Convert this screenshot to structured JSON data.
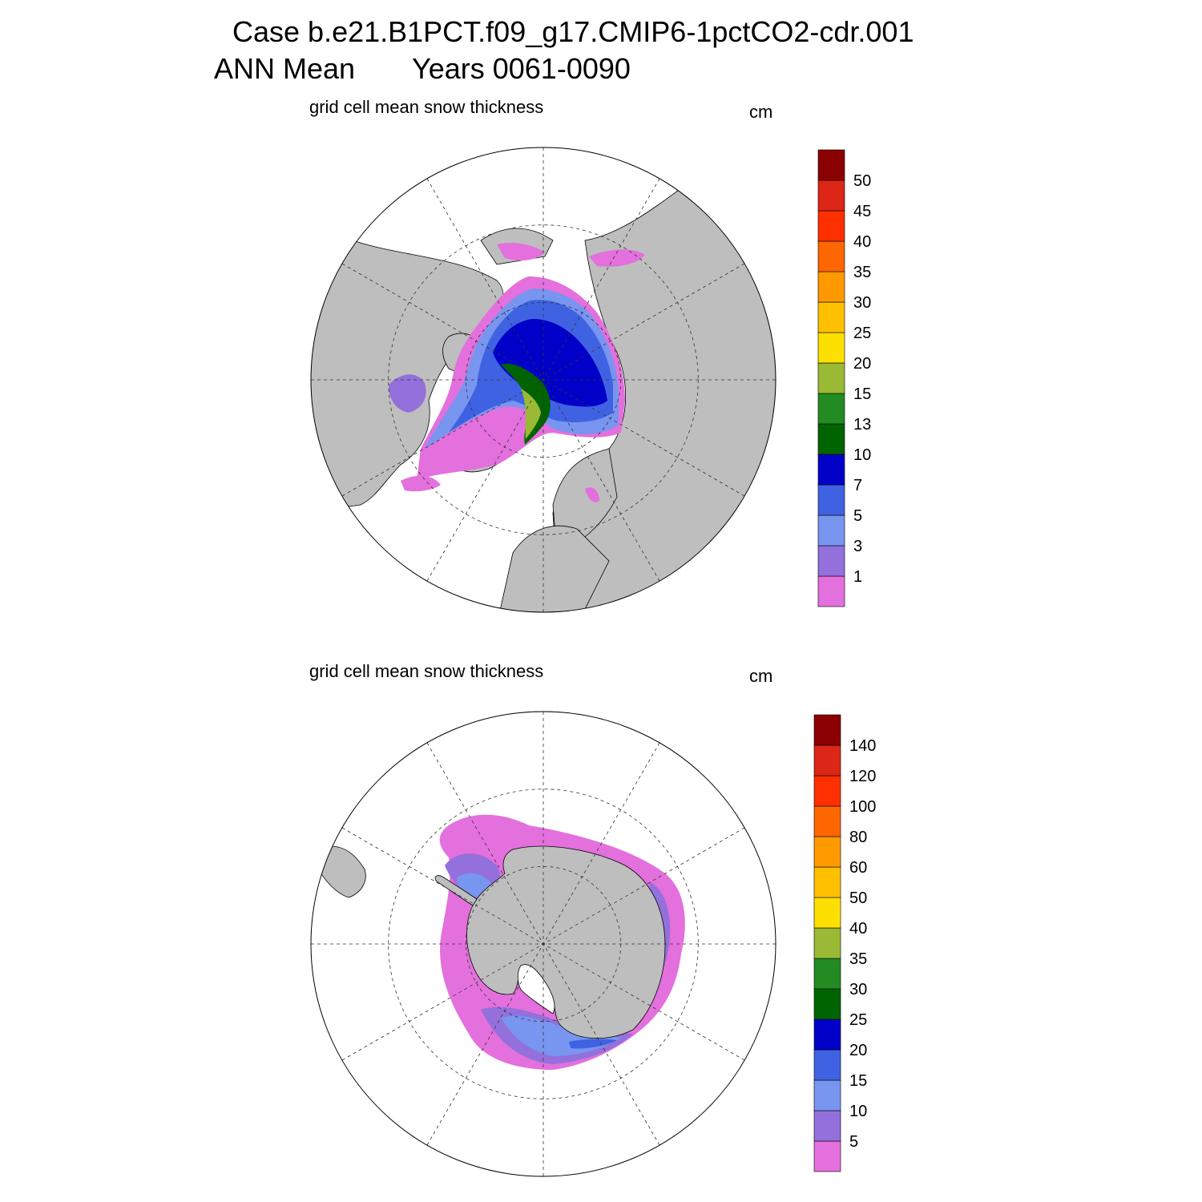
{
  "header": {
    "line1": "Case b.e21.B1PCT.f09_g17.CMIP6-1pctCO2-cdr.001",
    "line2_left": "ANN Mean",
    "line2_right": "Years 0061-0090"
  },
  "panels": [
    {
      "id": "north",
      "title": "grid cell mean snow thickness",
      "units": "cm",
      "colorbar": {
        "colors": [
          "#e370dc",
          "#9370dc",
          "#7895f0",
          "#3f62e3",
          "#0000c8",
          "#006400",
          "#228b22",
          "#9aba35",
          "#fde000",
          "#fec000",
          "#fe9a00",
          "#fe6600",
          "#fe3000",
          "#db2618",
          "#8b0000"
        ],
        "labels": [
          "1",
          "3",
          "5",
          "7",
          "10",
          "13",
          "15",
          "20",
          "25",
          "30",
          "35",
          "40",
          "45",
          "50"
        ]
      }
    },
    {
      "id": "south",
      "title": "grid cell mean snow thickness",
      "units": "cm",
      "colorbar": {
        "colors": [
          "#e370dc",
          "#9370dc",
          "#7895f0",
          "#3f62e3",
          "#0000c8",
          "#006400",
          "#228b22",
          "#9aba35",
          "#fde000",
          "#fec000",
          "#fe9a00",
          "#fe6600",
          "#fe3000",
          "#db2618",
          "#8b0000"
        ],
        "labels": [
          "5",
          "10",
          "15",
          "20",
          "25",
          "30",
          "35",
          "40",
          "50",
          "60",
          "80",
          "100",
          "120",
          "140"
        ]
      }
    }
  ]
}
